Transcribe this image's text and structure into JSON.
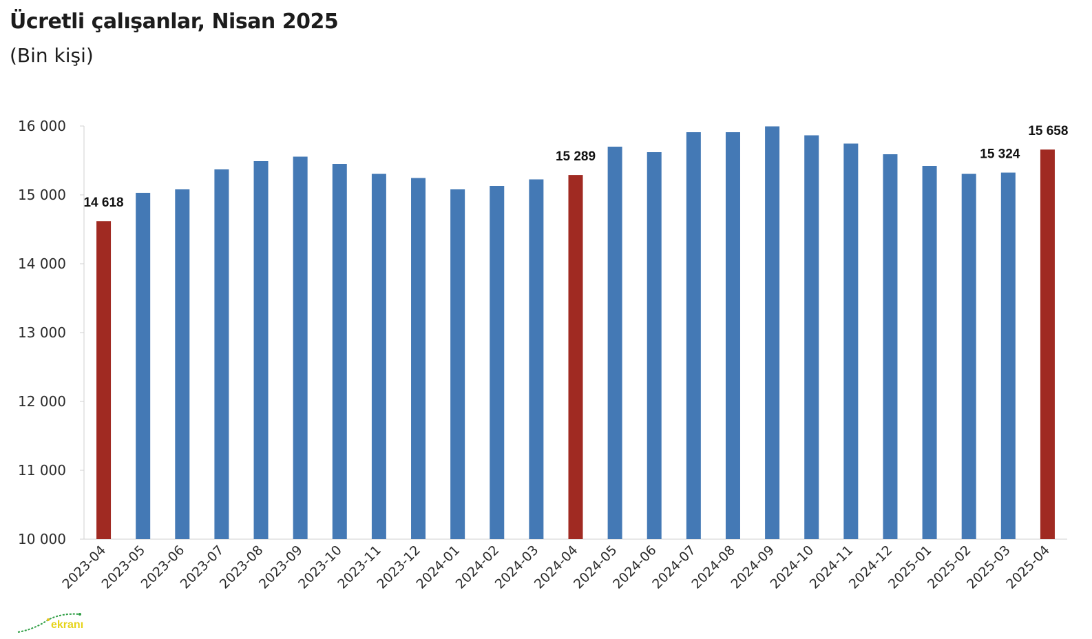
{
  "header": {
    "title": "Ücretli çalışanlar, Nisan 2025",
    "subtitle": "(Bin kişi)"
  },
  "colors": {
    "bar_default": "#4479b5",
    "bar_highlight": "#a02a22",
    "axis": "#d0d0d0",
    "text": "#2b2b2b"
  },
  "logo": {
    "text": "ekranı"
  },
  "chart_data": {
    "type": "bar",
    "title": "Ücretli çalışanlar, Nisan 2025",
    "subtitle": "(Bin kişi)",
    "ylim": [
      10000,
      16000
    ],
    "yticks": [
      10000,
      11000,
      12000,
      13000,
      14000,
      15000,
      16000
    ],
    "ytick_labels": [
      "10 000",
      "11 000",
      "12 000",
      "13 000",
      "14 000",
      "15 000",
      "16 000"
    ],
    "grid": false,
    "legend": "none",
    "categories": [
      "2023-04",
      "2023-05",
      "2023-06",
      "2023-07",
      "2023-08",
      "2023-09",
      "2023-10",
      "2023-11",
      "2023-12",
      "2024-01",
      "2024-02",
      "2024-03",
      "2024-04",
      "2024-05",
      "2024-06",
      "2024-07",
      "2024-08",
      "2024-09",
      "2024-10",
      "2024-11",
      "2024-12",
      "2025-01",
      "2025-02",
      "2025-03",
      "2025-04"
    ],
    "values": [
      14618,
      15030,
      15080,
      15370,
      15490,
      15555,
      15450,
      15305,
      15245,
      15080,
      15130,
      15225,
      15289,
      15700,
      15620,
      15910,
      15910,
      15995,
      15865,
      15745,
      15590,
      15420,
      15305,
      15324,
      15658
    ],
    "highlighted": [
      true,
      false,
      false,
      false,
      false,
      false,
      false,
      false,
      false,
      false,
      false,
      false,
      true,
      false,
      false,
      false,
      false,
      false,
      false,
      false,
      false,
      false,
      false,
      false,
      true
    ],
    "data_labels": [
      {
        "index": 0,
        "text": "14 618"
      },
      {
        "index": 12,
        "text": "15 289"
      },
      {
        "index": 23,
        "text": "15 324"
      },
      {
        "index": 24,
        "text": "15 658"
      }
    ]
  }
}
